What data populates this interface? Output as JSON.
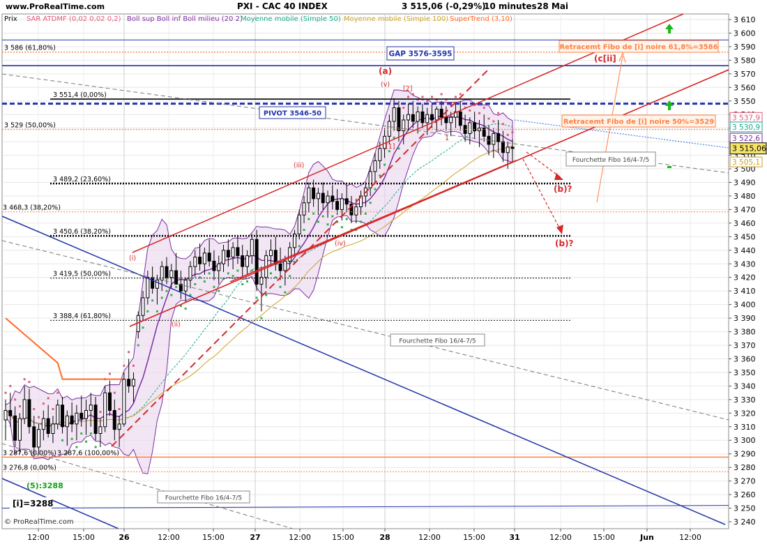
{
  "header": {
    "site": "www.ProRealTime.com",
    "title": "PXI - CAC 40 INDEX",
    "quote": "3 515,06 (-0,29%)",
    "interval": "10 minutes",
    "date": "28 Mai"
  },
  "legend": [
    {
      "label": "Prix",
      "color": "#000000"
    },
    {
      "label": "SAR ATDMF (0,02 0,02 0,2)",
      "color": "#e05a7a"
    },
    {
      "label": "Boll sup Boll inf Boll milieu (20 2)",
      "color": "#7b2d9e"
    },
    {
      "label": "Moyenne mobile (Simple 50)",
      "color": "#1aa88a"
    },
    {
      "label": "Moyenne mobile (Simple 100)",
      "color": "#c9a227"
    },
    {
      "label": "SuperTrend (3,10)",
      "color": "#ff6a2a"
    }
  ],
  "copyright": "© ProRealTime.com",
  "chart_data": {
    "type": "candlestick",
    "title": "PXI - CAC 40 INDEX",
    "y_axis": {
      "min": 3240,
      "max": 3610,
      "ticks": [
        "3 610",
        "3 600",
        "3 590",
        "3 580",
        "3 570",
        "3 560",
        "3 550",
        "3 540",
        "3 530",
        "3 520",
        "3 510",
        "3 500",
        "3 490",
        "3 480",
        "3 470",
        "3 460",
        "3 450",
        "3 440",
        "3 430",
        "3 420",
        "3 410",
        "3 400",
        "3 390",
        "3 380",
        "3 370",
        "3 360",
        "3 350",
        "3 340",
        "3 330",
        "3 320",
        "3 310",
        "3 300",
        "3 290",
        "3 280",
        "3 270",
        "3 260",
        "3 250",
        "3 240"
      ],
      "tick_values": [
        3610,
        3600,
        3590,
        3580,
        3570,
        3560,
        3550,
        3540,
        3530,
        3520,
        3510,
        3500,
        3490,
        3480,
        3470,
        3460,
        3450,
        3440,
        3430,
        3420,
        3410,
        3400,
        3390,
        3380,
        3370,
        3360,
        3350,
        3340,
        3330,
        3320,
        3310,
        3300,
        3290,
        3280,
        3270,
        3260,
        3250,
        3240
      ]
    },
    "x_axis": {
      "labels": [
        "12:00",
        "15:00",
        "26",
        "12:00",
        "15:00",
        "27",
        "12:00",
        "15:00",
        "28",
        "12:00",
        "15:00",
        "31",
        "12:00",
        "15:00",
        "Jun",
        "12:00"
      ],
      "bold": [
        false,
        false,
        true,
        false,
        false,
        true,
        false,
        false,
        true,
        false,
        false,
        true,
        false,
        false,
        true,
        false
      ]
    },
    "price_tags": [
      {
        "value": 3537.9,
        "label": "3 537,9",
        "color": "#e05a7a"
      },
      {
        "value": 3530.9,
        "label": "3 530,9",
        "color": "#1aa88a"
      },
      {
        "value": 3522.6,
        "label": "3 522,6",
        "color": "#7b2d9e"
      },
      {
        "value": 3515.06,
        "label": "3 515,06",
        "color": "#000000",
        "current": true
      },
      {
        "value": 3505.1,
        "label": "3 505,1",
        "color": "#c9a227"
      }
    ],
    "fibo_levels": [
      {
        "label": "3 586 (61,80%)",
        "value": 3586,
        "color": "#ff7f3f"
      },
      {
        "label": "3 551,4 (0,00%)",
        "value": 3551.4,
        "color": "#000000"
      },
      {
        "label": "3 529 (50,00%)",
        "value": 3529,
        "color": "#ff7f3f"
      },
      {
        "label": "3 489,2 (23,60%)",
        "value": 3489.2,
        "color": "#000000"
      },
      {
        "label": "3 468,3 (38,20%)",
        "value": 3468.3,
        "color": "#ff7f3f"
      },
      {
        "label": "3 450,6 (38,20%)",
        "value": 3450.6,
        "color": "#000000"
      },
      {
        "label": "3 419,5 (50,00%)",
        "value": 3419.5,
        "color": "#000000"
      },
      {
        "label": "3 388,4 (61,80%)",
        "value": 3388.4,
        "color": "#000000"
      },
      {
        "label": "3 287,6 (0,00%)",
        "value": 3287.6,
        "color": "#000000"
      },
      {
        "label": "3 287,6 (100,00%)",
        "value": 3287.6,
        "color": "#000000"
      },
      {
        "label": "3 276,8 (0,00%)",
        "value": 3276.8,
        "color": "#ff7f3f"
      }
    ],
    "annotations": {
      "gap": "GAP 3576-3595",
      "pivot": "PIVOT 3546-50",
      "retr_618": "Retracemt Fibo de [i] noire 61,8%=3586",
      "retr_50": "Retracemt Fibo de [i] noire 50%=3529",
      "fourchette": "Fourchette Fibo 16/4-7/5",
      "wave_a": "(a)",
      "wave_c": "(c[ii]",
      "wave_b": "(b)?",
      "wave_5": "(5):3288",
      "wave_i": "[i]=3288",
      "wave_roman": [
        "(i)",
        "(ii)",
        "(iii)",
        "(iv)",
        "(v)",
        "[1]",
        "[2]",
        "1"
      ]
    },
    "candles": [
      [
        3315,
        3330,
        3300,
        3322
      ],
      [
        3322,
        3335,
        3310,
        3318
      ],
      [
        3318,
        3325,
        3295,
        3300
      ],
      [
        3300,
        3320,
        3290,
        3316
      ],
      [
        3316,
        3340,
        3312,
        3330
      ],
      [
        3330,
        3338,
        3305,
        3310
      ],
      [
        3310,
        3318,
        3288,
        3295
      ],
      [
        3295,
        3312,
        3290,
        3308
      ],
      [
        3308,
        3322,
        3300,
        3316
      ],
      [
        3316,
        3326,
        3302,
        3305
      ],
      [
        3305,
        3318,
        3298,
        3312
      ],
      [
        3312,
        3330,
        3308,
        3326
      ],
      [
        3326,
        3332,
        3305,
        3310
      ],
      [
        3310,
        3322,
        3296,
        3318
      ],
      [
        3318,
        3328,
        3306,
        3312
      ],
      [
        3312,
        3326,
        3300,
        3320
      ],
      [
        3320,
        3333,
        3310,
        3316
      ],
      [
        3316,
        3330,
        3304,
        3322
      ],
      [
        3322,
        3335,
        3310,
        3326
      ],
      [
        3326,
        3332,
        3300,
        3305
      ],
      [
        3305,
        3316,
        3295,
        3310
      ],
      [
        3310,
        3340,
        3306,
        3335
      ],
      [
        3335,
        3344,
        3318,
        3322
      ],
      [
        3322,
        3330,
        3300,
        3308
      ],
      [
        3308,
        3318,
        3295,
        3312
      ],
      [
        3312,
        3350,
        3310,
        3345
      ],
      [
        3345,
        3360,
        3335,
        3340
      ],
      [
        3340,
        3350,
        3328,
        3345
      ],
      [
        3380,
        3395,
        3375,
        3392
      ],
      [
        3392,
        3410,
        3388,
        3405
      ],
      [
        3405,
        3425,
        3400,
        3420
      ],
      [
        3420,
        3428,
        3408,
        3412
      ],
      [
        3412,
        3422,
        3400,
        3418
      ],
      [
        3418,
        3432,
        3410,
        3428
      ],
      [
        3428,
        3435,
        3415,
        3420
      ],
      [
        3420,
        3430,
        3412,
        3425
      ],
      [
        3425,
        3438,
        3418,
        3415
      ],
      [
        3415,
        3425,
        3404,
        3410
      ],
      [
        3410,
        3420,
        3402,
        3418
      ],
      [
        3418,
        3432,
        3412,
        3428
      ],
      [
        3428,
        3440,
        3420,
        3435
      ],
      [
        3435,
        3445,
        3425,
        3430
      ],
      [
        3430,
        3442,
        3422,
        3438
      ],
      [
        3438,
        3448,
        3428,
        3432
      ],
      [
        3432,
        3440,
        3418,
        3425
      ],
      [
        3425,
        3436,
        3415,
        3430
      ],
      [
        3430,
        3444,
        3424,
        3440
      ],
      [
        3440,
        3448,
        3428,
        3435
      ],
      [
        3435,
        3446,
        3426,
        3442
      ],
      [
        3442,
        3450,
        3430,
        3436
      ],
      [
        3436,
        3444,
        3420,
        3428
      ],
      [
        3428,
        3440,
        3422,
        3436
      ],
      [
        3436,
        3452,
        3430,
        3448
      ],
      [
        3448,
        3455,
        3410,
        3415
      ],
      [
        3415,
        3428,
        3395,
        3420
      ],
      [
        3420,
        3440,
        3412,
        3436
      ],
      [
        3436,
        3448,
        3428,
        3440
      ],
      [
        3440,
        3450,
        3425,
        3430
      ],
      [
        3430,
        3442,
        3418,
        3425
      ],
      [
        3425,
        3436,
        3414,
        3432
      ],
      [
        3432,
        3446,
        3426,
        3442
      ],
      [
        3442,
        3455,
        3436,
        3452
      ],
      [
        3452,
        3470,
        3448,
        3466
      ],
      [
        3466,
        3480,
        3460,
        3475
      ],
      [
        3475,
        3490,
        3468,
        3486
      ],
      [
        3486,
        3492,
        3472,
        3478
      ],
      [
        3478,
        3486,
        3466,
        3482
      ],
      [
        3482,
        3490,
        3470,
        3475
      ],
      [
        3475,
        3484,
        3464,
        3480
      ],
      [
        3480,
        3488,
        3470,
        3476
      ],
      [
        3476,
        3485,
        3466,
        3470
      ],
      [
        3470,
        3482,
        3462,
        3478
      ],
      [
        3478,
        3488,
        3468,
        3474
      ],
      [
        3474,
        3480,
        3460,
        3466
      ],
      [
        3466,
        3478,
        3460,
        3472
      ],
      [
        3472,
        3484,
        3466,
        3480
      ],
      [
        3480,
        3490,
        3472,
        3486
      ],
      [
        3486,
        3502,
        3480,
        3498
      ],
      [
        3498,
        3512,
        3490,
        3506
      ],
      [
        3506,
        3520,
        3500,
        3515
      ],
      [
        3515,
        3530,
        3508,
        3524
      ],
      [
        3524,
        3540,
        3518,
        3535
      ],
      [
        3535,
        3552,
        3528,
        3545
      ],
      [
        3545,
        3550,
        3520,
        3528
      ],
      [
        3528,
        3540,
        3518,
        3536
      ],
      [
        3536,
        3548,
        3528,
        3540
      ],
      [
        3540,
        3550,
        3530,
        3535
      ],
      [
        3535,
        3546,
        3526,
        3542
      ],
      [
        3542,
        3548,
        3530,
        3534
      ],
      [
        3534,
        3545,
        3525,
        3540
      ],
      [
        3540,
        3548,
        3530,
        3536
      ],
      [
        3536,
        3546,
        3528,
        3544
      ],
      [
        3544,
        3550,
        3532,
        3538
      ],
      [
        3538,
        3546,
        3528,
        3534
      ],
      [
        3534,
        3542,
        3524,
        3538
      ],
      [
        3538,
        3548,
        3530,
        3542
      ],
      [
        3542,
        3550,
        3528,
        3532
      ],
      [
        3532,
        3540,
        3520,
        3526
      ],
      [
        3526,
        3538,
        3518,
        3534
      ],
      [
        3534,
        3542,
        3522,
        3528
      ],
      [
        3528,
        3536,
        3516,
        3530
      ],
      [
        3530,
        3540,
        3520,
        3524
      ],
      [
        3524,
        3532,
        3510,
        3518
      ],
      [
        3518,
        3530,
        3508,
        3526
      ],
      [
        3526,
        3536,
        3512,
        3520
      ],
      [
        3520,
        3528,
        3505,
        3512
      ],
      [
        3512,
        3520,
        3500,
        3516
      ],
      [
        3516,
        3522,
        3505,
        3515
      ]
    ]
  }
}
